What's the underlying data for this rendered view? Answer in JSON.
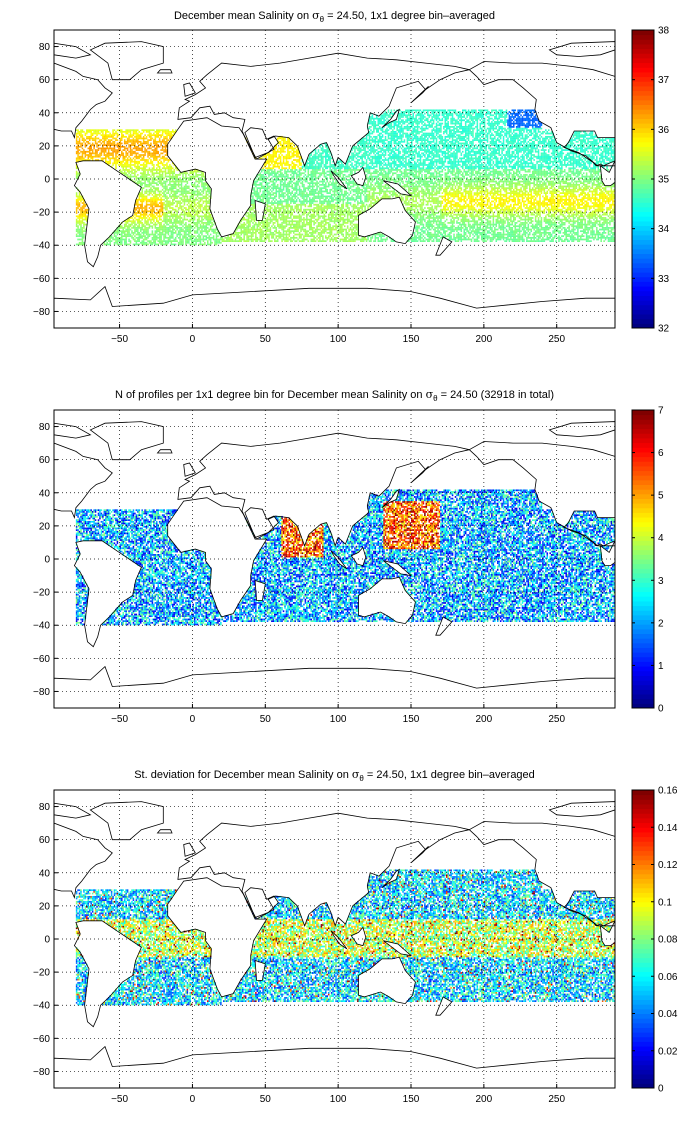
{
  "panels": [
    {
      "title_parts": {
        "before": "December mean Salinity on ",
        "sym": "σ",
        "sub": "θ",
        "after": " = 24.50, 1x1 degree bin–averaged"
      },
      "field": "salinity",
      "colorbar": {
        "min": 32,
        "max": 38,
        "ticks": [
          32,
          33,
          34,
          35,
          36,
          37,
          38
        ],
        "tick_labels": [
          "32",
          "33",
          "34",
          "35",
          "36",
          "37",
          "38"
        ]
      }
    },
    {
      "title_parts": {
        "before": "N of profiles per 1x1 degree bin for December mean Salinity on ",
        "sym": "σ",
        "sub": "θ",
        "after": " = 24.50 (32918 in total)"
      },
      "field": "count",
      "colorbar": {
        "min": 0,
        "max": 7,
        "ticks": [
          0,
          1,
          2,
          3,
          4,
          5,
          6,
          7
        ],
        "tick_labels": [
          "0",
          "1",
          "2",
          "3",
          "4",
          "5",
          "6",
          "7"
        ]
      }
    },
    {
      "title_parts": {
        "before": "St. deviation for December mean Salinity on ",
        "sym": "σ",
        "sub": "θ",
        "after": " = 24.50, 1x1 degree bin–averaged"
      },
      "field": "stdev",
      "colorbar": {
        "min": 0,
        "max": 0.16,
        "ticks": [
          0,
          0.02,
          0.04,
          0.06,
          0.08,
          0.1,
          0.12,
          0.14,
          0.16
        ],
        "tick_labels": [
          "0",
          "0.02",
          "0.04",
          "0.06",
          "0.08",
          "0.1",
          "0.12",
          "0.14",
          "0.16"
        ]
      }
    }
  ],
  "map_axes": {
    "x_range": [
      -95,
      290
    ],
    "y_range": [
      -90,
      90
    ],
    "x_ticks": [
      -50,
      0,
      50,
      100,
      150,
      200,
      250
    ],
    "x_tick_labels": [
      "−50",
      "0",
      "50",
      "100",
      "150",
      "200",
      "250"
    ],
    "y_ticks": [
      -80,
      -60,
      -40,
      -20,
      0,
      20,
      40,
      60,
      80
    ],
    "y_tick_labels": [
      "−80",
      "−60",
      "−40",
      "−20",
      "0",
      "20",
      "40",
      "60",
      "80"
    ],
    "grid": true,
    "grid_style": "dotted",
    "coastlines": true,
    "projection": "equirectangular, longitude wrapped 0–360"
  },
  "colormap": "jet"
}
